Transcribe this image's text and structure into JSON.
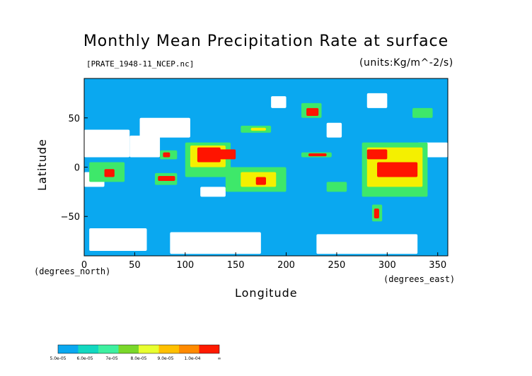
{
  "chart_data": {
    "type": "heatmap",
    "title": "Monthly Mean Precipitation Rate at surface",
    "source_label": "[PRATE_1948-11_NCEP.nc]",
    "units_label": "(units:Kg/m^-2/s)",
    "xlabel": "Longitude",
    "ylabel": "Latitude",
    "x_unit": "(degrees_east)",
    "y_unit": "(degrees_north)",
    "xlim": [
      0,
      360
    ],
    "ylim": [
      -90,
      90
    ],
    "x_ticks": [
      0,
      50,
      100,
      150,
      200,
      250,
      300,
      350
    ],
    "y_ticks": [
      50,
      0,
      -50
    ],
    "x_tick_labels": [
      "0",
      "50",
      "100",
      "150",
      "200",
      "250",
      "300",
      "350"
    ],
    "y_tick_labels": [
      "50",
      "0",
      "−50"
    ],
    "colorbar": {
      "labels": [
        "5.0e-05",
        "6.0e-05",
        "7e-05",
        "8.0e-05",
        "9.0e-05",
        "1.0e-04",
        "∞"
      ],
      "colors": [
        "#0aa8f0",
        "#12d8c0",
        "#3ef0a0",
        "#7ad82a",
        "#e8ff30",
        "#ffc000",
        "#ff8a00",
        "#ff1a00"
      ]
    },
    "colors": {
      "ocean": "#0aa8f0",
      "missing": "#ffffff",
      "green": "#3ee86a",
      "yellow": "#f4f000",
      "orange": "#ff9a00",
      "red": "#ff1400"
    },
    "regions": [
      {
        "level": "low",
        "lon": [
          5,
          62
        ],
        "lat": [
          -85,
          -62
        ]
      },
      {
        "level": "low",
        "lon": [
          85,
          175
        ],
        "lat": [
          -88,
          -66
        ]
      },
      {
        "level": "low",
        "lon": [
          230,
          330
        ],
        "lat": [
          -88,
          -68
        ]
      },
      {
        "level": "low",
        "lon": [
          0,
          45
        ],
        "lat": [
          10,
          38
        ]
      },
      {
        "level": "low",
        "lon": [
          45,
          75
        ],
        "lat": [
          10,
          32
        ]
      },
      {
        "level": "low",
        "lon": [
          0,
          20
        ],
        "lat": [
          -20,
          -5
        ]
      },
      {
        "level": "low",
        "lon": [
          55,
          105
        ],
        "lat": [
          30,
          50
        ]
      },
      {
        "level": "low",
        "lon": [
          115,
          140
        ],
        "lat": [
          -30,
          -20
        ]
      },
      {
        "level": "low",
        "lon": [
          240,
          255
        ],
        "lat": [
          30,
          45
        ]
      },
      {
        "level": "low",
        "lon": [
          280,
          300
        ],
        "lat": [
          60,
          75
        ]
      },
      {
        "level": "low",
        "lon": [
          330,
          360
        ],
        "lat": [
          10,
          25
        ]
      },
      {
        "level": "low",
        "lon": [
          185,
          200
        ],
        "lat": [
          60,
          72
        ]
      },
      {
        "level": "green",
        "lon": [
          100,
          145
        ],
        "lat": [
          -10,
          25
        ]
      },
      {
        "level": "yellow",
        "lon": [
          105,
          140
        ],
        "lat": [
          0,
          22
        ]
      },
      {
        "level": "red",
        "lon": [
          112,
          135
        ],
        "lat": [
          5,
          20
        ]
      },
      {
        "level": "red",
        "lon": [
          130,
          150
        ],
        "lat": [
          8,
          18
        ]
      },
      {
        "level": "green",
        "lon": [
          140,
          200
        ],
        "lat": [
          -25,
          0
        ]
      },
      {
        "level": "yellow",
        "lon": [
          155,
          190
        ],
        "lat": [
          -20,
          -5
        ]
      },
      {
        "level": "red",
        "lon": [
          170,
          180
        ],
        "lat": [
          -18,
          -10
        ]
      },
      {
        "level": "green",
        "lon": [
          70,
          92
        ],
        "lat": [
          -18,
          -6
        ]
      },
      {
        "level": "red",
        "lon": [
          73,
          90
        ],
        "lat": [
          -14,
          -9
        ]
      },
      {
        "level": "green",
        "lon": [
          75,
          92
        ],
        "lat": [
          8,
          17
        ]
      },
      {
        "level": "red",
        "lon": [
          78,
          85
        ],
        "lat": [
          10,
          15
        ]
      },
      {
        "level": "green",
        "lon": [
          5,
          40
        ],
        "lat": [
          -15,
          5
        ]
      },
      {
        "level": "red",
        "lon": [
          20,
          30
        ],
        "lat": [
          -10,
          -2
        ]
      },
      {
        "level": "green",
        "lon": [
          155,
          185
        ],
        "lat": [
          35,
          42
        ]
      },
      {
        "level": "yellow",
        "lon": [
          165,
          180
        ],
        "lat": [
          37,
          40
        ]
      },
      {
        "level": "green",
        "lon": [
          215,
          245
        ],
        "lat": [
          10,
          15
        ]
      },
      {
        "level": "red",
        "lon": [
          222,
          240
        ],
        "lat": [
          11,
          14
        ]
      },
      {
        "level": "green",
        "lon": [
          215,
          235
        ],
        "lat": [
          50,
          65
        ]
      },
      {
        "level": "red",
        "lon": [
          220,
          232
        ],
        "lat": [
          52,
          60
        ]
      },
      {
        "level": "green",
        "lon": [
          275,
          340
        ],
        "lat": [
          -30,
          25
        ]
      },
      {
        "level": "yellow",
        "lon": [
          280,
          335
        ],
        "lat": [
          -20,
          20
        ]
      },
      {
        "level": "red",
        "lon": [
          280,
          300
        ],
        "lat": [
          8,
          18
        ]
      },
      {
        "level": "red",
        "lon": [
          290,
          330
        ],
        "lat": [
          -10,
          5
        ]
      },
      {
        "level": "green",
        "lon": [
          285,
          295
        ],
        "lat": [
          -55,
          -38
        ]
      },
      {
        "level": "red",
        "lon": [
          287,
          292
        ],
        "lat": [
          -52,
          -42
        ]
      },
      {
        "level": "green",
        "lon": [
          325,
          345
        ],
        "lat": [
          50,
          60
        ]
      },
      {
        "level": "green",
        "lon": [
          240,
          260
        ],
        "lat": [
          -25,
          -15
        ]
      }
    ]
  }
}
